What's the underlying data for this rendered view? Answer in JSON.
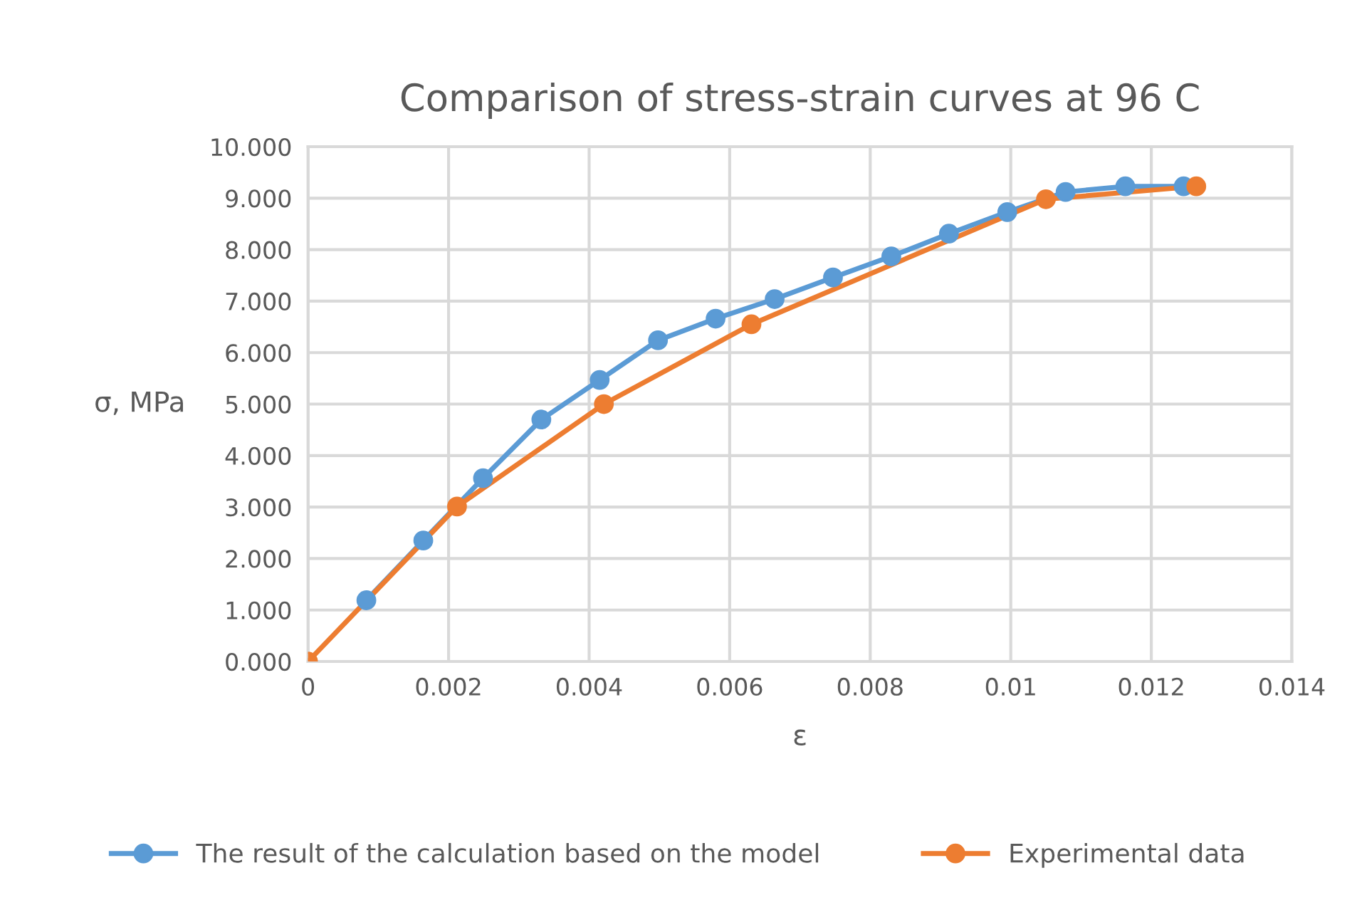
{
  "chart_data": {
    "type": "line",
    "title": "Comparison of stress-strain curves at 96 C",
    "xlabel": "ε",
    "ylabel": "σ, MPa",
    "series": [
      {
        "name": "The result of the calculation based on the model",
        "color": "#5b9bd5",
        "x": [
          0.00083,
          0.00164,
          0.00249,
          0.00332,
          0.00415,
          0.00498,
          0.0058,
          0.00664,
          0.00747,
          0.0083,
          0.00912,
          0.00995,
          0.01078,
          0.01163,
          0.01246
        ],
        "values": [
          1.19,
          2.35,
          3.56,
          4.7,
          5.47,
          6.24,
          6.66,
          7.04,
          7.46,
          7.87,
          8.31,
          8.73,
          9.12,
          9.23,
          9.23
        ]
      },
      {
        "name": "Experimental data",
        "color": "#ed7d31",
        "x": [
          0,
          0.00212,
          0.00421,
          0.00631,
          0.0105,
          0.01264
        ],
        "values": [
          0,
          3.01,
          5.0,
          6.55,
          8.98,
          9.23
        ]
      }
    ],
    "xlim": [
      0,
      0.014
    ],
    "xticks": [
      0,
      0.002,
      0.004,
      0.006,
      0.008,
      0.01,
      0.012,
      0.014
    ],
    "ylim": [
      0,
      10
    ],
    "yticks": [
      {
        "value": 0,
        "label": "0.000"
      },
      {
        "value": 1,
        "label": "1.000"
      },
      {
        "value": 2,
        "label": "2.000"
      },
      {
        "value": 3,
        "label": "3.000"
      },
      {
        "value": 4,
        "label": "4.000"
      },
      {
        "value": 5,
        "label": "5.000"
      },
      {
        "value": 6,
        "label": "6.000"
      },
      {
        "value": 7,
        "label": "7.000"
      },
      {
        "value": 8,
        "label": "8.000"
      },
      {
        "value": 9,
        "label": "9.000"
      },
      {
        "value": 10,
        "label": "10.000"
      }
    ],
    "grid": true,
    "legend": "bottom",
    "marker": "circle",
    "line_style": "solid"
  }
}
